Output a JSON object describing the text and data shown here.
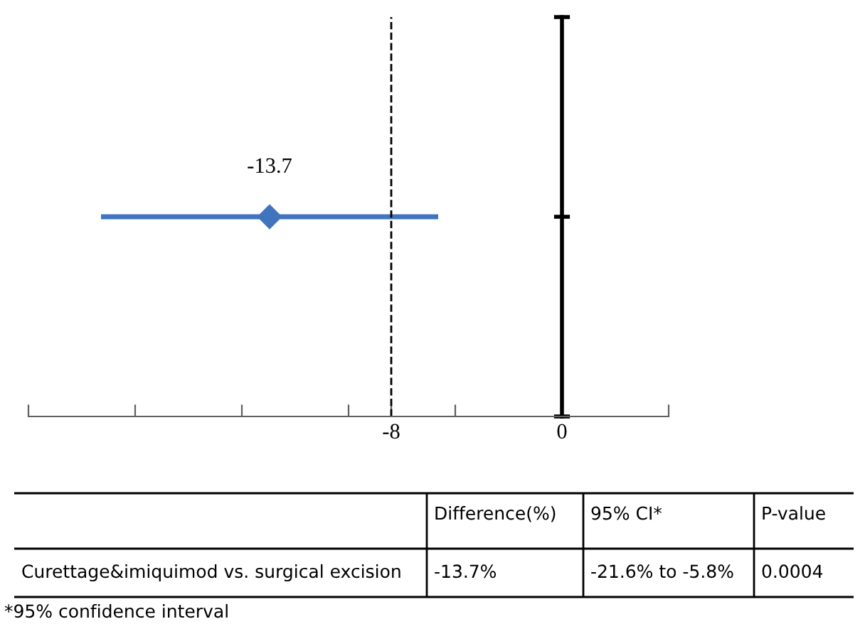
{
  "chart_data": {
    "type": "scatter",
    "orientation": "horizontal",
    "categories": [
      null
    ],
    "series": [
      {
        "color": "#4174be",
        "values": [
          -13.7
        ],
        "errors": [
          [
            -21.6,
            -5.8
          ]
        ]
      }
    ],
    "data_labels": true,
    "marker": "diamond",
    "grid": false,
    "legend": false,
    "xlim": [
      -25,
      5
    ],
    "xticks": [
      {
        "value": -25,
        "label": null
      },
      {
        "value": -20,
        "label": null
      },
      {
        "value": -15,
        "label": null
      },
      {
        "value": -10,
        "label": null
      },
      {
        "value": -8,
        "label": "-8"
      },
      {
        "value": -5,
        "label": null
      },
      {
        "value": 0,
        "label": "0"
      },
      {
        "value": 5,
        "label": null
      }
    ],
    "ref_lines": [
      {
        "axis": "x",
        "value": -8,
        "label": null,
        "color": "#000000",
        "line_style": "dashed"
      }
    ],
    "annotations": [
      "Difference(%)",
      "95% CI*",
      "P-value",
      "Curettage&imiquimod vs. surgical excision",
      "-13.7%",
      "-21.6% to -5.8%",
      "0.0004",
      "*95% confidence interval"
    ]
  }
}
